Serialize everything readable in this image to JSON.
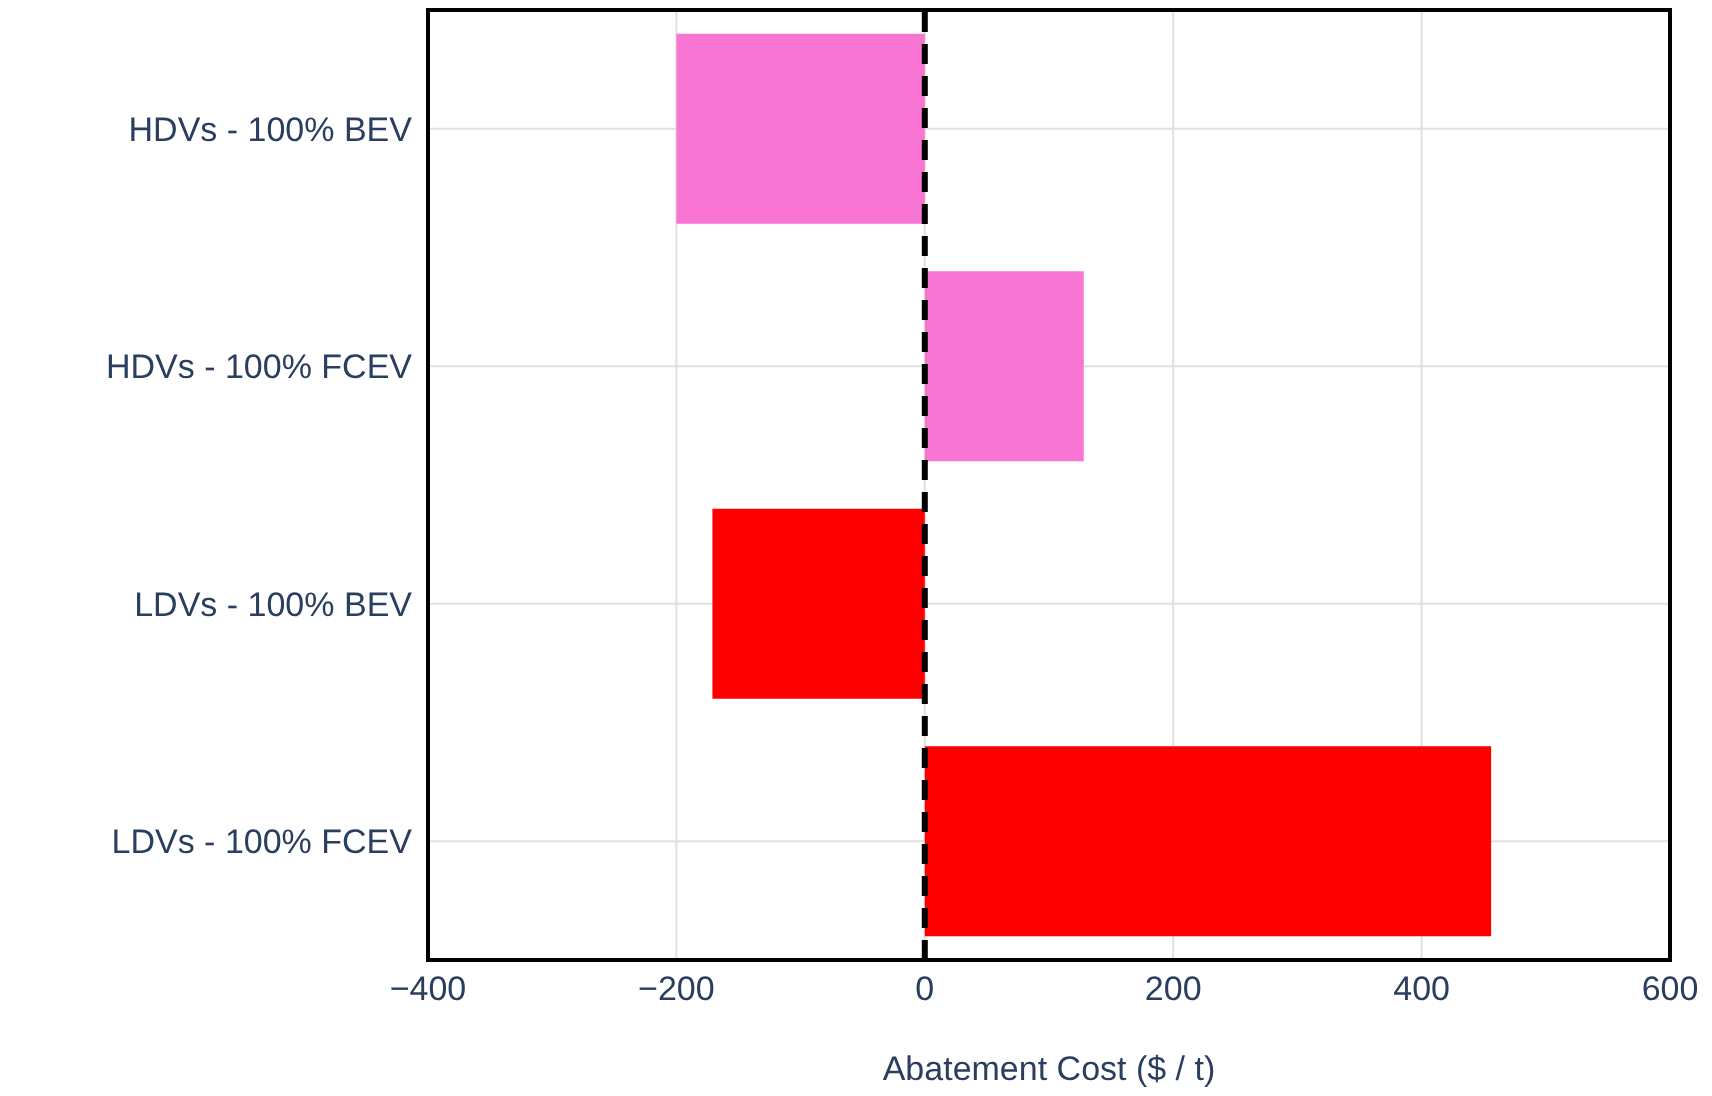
{
  "chart_data": {
    "type": "bar",
    "orientation": "horizontal",
    "xlabel": "Abatement Cost ($ / t)",
    "categories": [
      "HDVs - 100% BEV",
      "HDVs - 100% FCEV",
      "LDVs - 100% BEV",
      "LDVs - 100% FCEV"
    ],
    "values": [
      -200,
      128,
      -171,
      456
    ],
    "colors": [
      "#f875d3",
      "#f875d3",
      "#ff0000",
      "#ff0000"
    ],
    "xlim": [
      -400,
      600
    ],
    "xticks": [
      {
        "value": -400,
        "label": "−400"
      },
      {
        "value": -200,
        "label": "−200"
      },
      0,
      200,
      400,
      600
    ],
    "grid": true,
    "legend": false,
    "ref_lines": [
      {
        "axis": "x",
        "value": 0,
        "color": "#000000",
        "line_style": "dashed"
      }
    ]
  }
}
